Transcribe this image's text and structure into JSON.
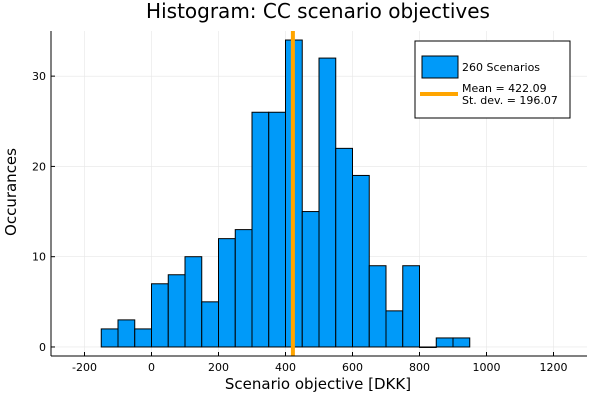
{
  "chart_data": {
    "type": "bar",
    "title": "Histogram: CC scenario objectives",
    "xlabel": "Scenario objective [DKK]",
    "ylabel": "Occurances",
    "xlim": [
      -300,
      1300
    ],
    "ylim": [
      -1,
      35
    ],
    "xticks": [
      -200,
      0,
      200,
      400,
      600,
      800,
      1000,
      1200
    ],
    "yticks": [
      0,
      10,
      20,
      30
    ],
    "grid": true,
    "legend_position": "top-right",
    "bin_width": 50,
    "bins": [
      {
        "start": -150,
        "count": 2
      },
      {
        "start": -100,
        "count": 3
      },
      {
        "start": -50,
        "count": 2
      },
      {
        "start": 0,
        "count": 7
      },
      {
        "start": 50,
        "count": 8
      },
      {
        "start": 100,
        "count": 10
      },
      {
        "start": 150,
        "count": 5
      },
      {
        "start": 200,
        "count": 12
      },
      {
        "start": 250,
        "count": 13
      },
      {
        "start": 300,
        "count": 26
      },
      {
        "start": 350,
        "count": 26
      },
      {
        "start": 400,
        "count": 34
      },
      {
        "start": 450,
        "count": 15
      },
      {
        "start": 500,
        "count": 32
      },
      {
        "start": 550,
        "count": 22
      },
      {
        "start": 600,
        "count": 19
      },
      {
        "start": 650,
        "count": 9
      },
      {
        "start": 700,
        "count": 4
      },
      {
        "start": 750,
        "count": 9
      },
      {
        "start": 800,
        "count": 0
      },
      {
        "start": 850,
        "count": 1
      },
      {
        "start": 900,
        "count": 1
      }
    ],
    "series": [
      {
        "name": "260 Scenarios",
        "kind": "histogram",
        "color": "#009af9"
      },
      {
        "name": "Mean = 422.09",
        "name2": "St. dev. = 196.07",
        "kind": "vline",
        "x": 422.09,
        "color": "#ffa500"
      }
    ]
  }
}
